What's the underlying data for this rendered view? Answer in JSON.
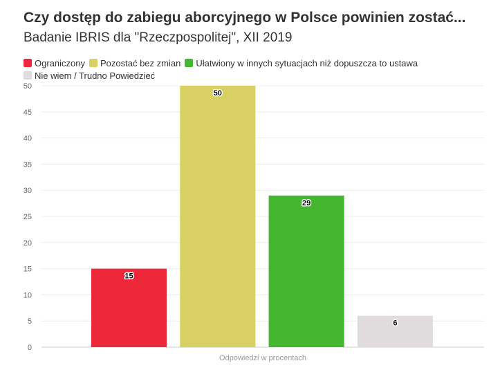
{
  "chart_data": {
    "type": "bar",
    "title": "Czy dostęp do zabiegu aborcyjnego w Polsce powinien zostać...",
    "subtitle": "Badanie IBRIS dla \"Rzeczpospolitej\", XII 2019",
    "xlabel": "Odpowiedzi w procentach",
    "ylabel": "",
    "ylim": [
      0,
      50
    ],
    "yticks": [
      0,
      5,
      10,
      15,
      20,
      25,
      30,
      35,
      40,
      45,
      50
    ],
    "grid": true,
    "legend_position": "top-left",
    "categories": [
      "Ograniczony",
      "Pozostać bez zmian",
      "Ułatwiony w innych sytuacjach niż dopuszcza to ustawa",
      "Nie wiem / Trudno Powiedzieć"
    ],
    "values": [
      15,
      50,
      29,
      6
    ],
    "colors": [
      "#ee283b",
      "#d8d062",
      "#44b62f",
      "#e0dcdd"
    ]
  }
}
